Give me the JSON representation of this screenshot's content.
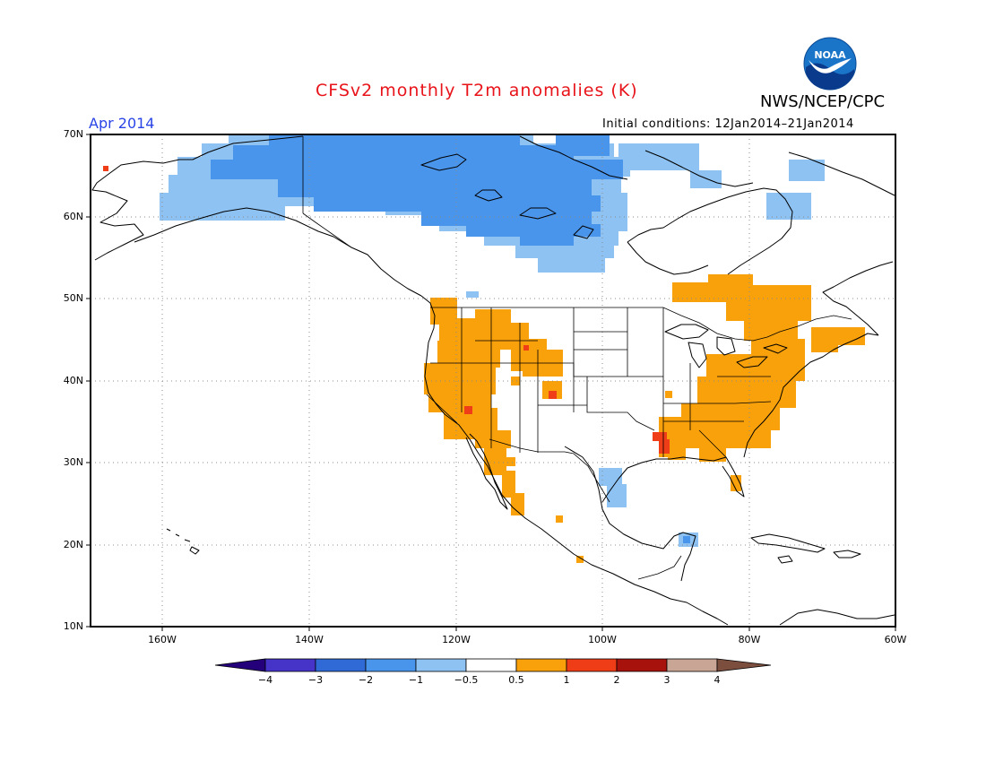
{
  "header": {
    "title": "CFSv2 monthly T2m anomalies (K)",
    "agency": "NWS/NCEP/CPC",
    "month": "Apr 2014",
    "initial_conditions": "Initial conditions: 12Jan2014–21Jan2014",
    "logo_text": "NOAA"
  },
  "map": {
    "lat_labels": [
      "70N",
      "60N",
      "50N",
      "40N",
      "30N",
      "20N",
      "10N"
    ],
    "lon_labels": [
      "160W",
      "140W",
      "120W",
      "100W",
      "80W",
      "60W"
    ]
  },
  "colorbar": {
    "labels": [
      "−4",
      "−3",
      "−2",
      "−1",
      "−0.5",
      "0.5",
      "1",
      "2",
      "3",
      "4"
    ],
    "colors": {
      "below_-4": "#24007a",
      "-4_-3": "#4634c8",
      "-3_-2": "#2f6ad6",
      "-2_-1": "#4a95ec",
      "-1_-0.5": "#8ec2f2",
      "-0.5_0.5": "#ffffff",
      "0.5_1": "#f9a10a",
      "1_2": "#ee3d17",
      "2_3": "#a8120c",
      "3_4": "#c9a595",
      "above_4": "#7c4e3e"
    }
  }
}
